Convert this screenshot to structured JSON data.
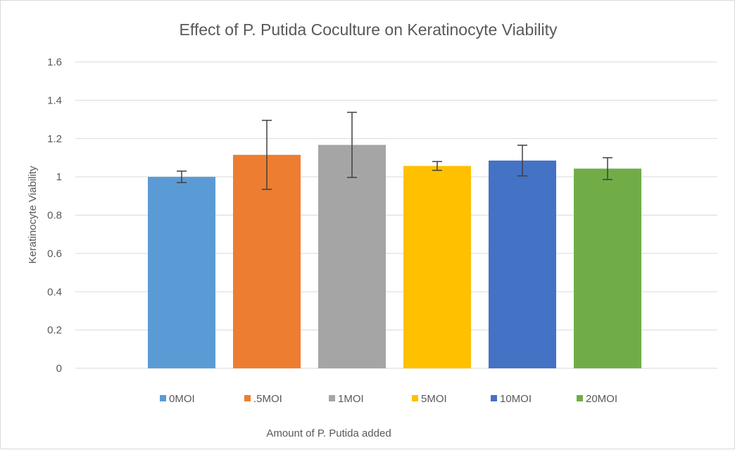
{
  "chart_data": {
    "type": "bar",
    "title": "Effect of P. Putida Coculture on Keratinocyte Viability",
    "xlabel": "Amount of P. Putida added",
    "ylabel": "Keratinocyte Viability",
    "ylim": [
      0,
      1.6
    ],
    "yticks": [
      "0",
      "0.2",
      "0.4",
      "0.6",
      "0.8",
      "1",
      "1.2",
      "1.4",
      "1.6"
    ],
    "grid": true,
    "legend_position": "bottom",
    "series": [
      {
        "name": "0MOI",
        "value": 1.0,
        "error": 0.03,
        "color": "#5b9bd5"
      },
      {
        "name": ".5MOI",
        "value": 1.115,
        "error": 0.18,
        "color": "#ed7d31"
      },
      {
        "name": "1MOI",
        "value": 1.167,
        "error": 0.17,
        "color": "#a5a5a5"
      },
      {
        "name": "5MOI",
        "value": 1.057,
        "error": 0.023,
        "color": "#ffc000"
      },
      {
        "name": "10MOI",
        "value": 1.085,
        "error": 0.08,
        "color": "#4472c4"
      },
      {
        "name": "20MOI",
        "value": 1.043,
        "error": 0.057,
        "color": "#70ad47"
      }
    ]
  }
}
